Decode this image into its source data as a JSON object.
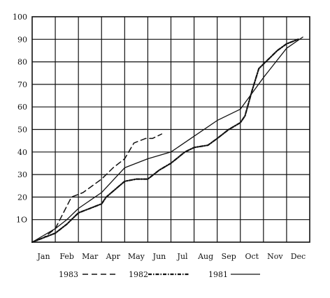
{
  "chart_data": {
    "type": "line",
    "title": "",
    "xlabel": "",
    "ylabel": "",
    "ylim": [
      0,
      100
    ],
    "yticks": [
      10,
      20,
      30,
      40,
      50,
      60,
      70,
      80,
      90,
      100
    ],
    "ytick_labels": [
      "1O",
      "20",
      "30",
      "40",
      "50",
      "60",
      "70",
      "80",
      "90",
      "100"
    ],
    "xticks": [
      "Jan",
      "Feb",
      "Mar",
      "Apr",
      "May",
      "Jun",
      "Jul",
      "Aug",
      "Sep",
      "Oct",
      "Nov",
      "Dec"
    ],
    "grid": true,
    "legend_position": "bottom",
    "series": [
      {
        "name": "1983",
        "style": "dashed",
        "x": [
          0,
          0.5,
          1,
          1.7,
          2.2,
          3,
          3.5,
          4,
          4.4,
          4.9,
          5.2,
          5.6
        ],
        "y": [
          0,
          2,
          6,
          20,
          22,
          28,
          33,
          37,
          44,
          46,
          46,
          48
        ]
      },
      {
        "name": "1982",
        "style": "dash-dot",
        "x": [
          0,
          1,
          1.5,
          2,
          2.5,
          3,
          3.2,
          4,
          4.5,
          5,
          5.5,
          6,
          6.6,
          7,
          7.6,
          8,
          8.5,
          9,
          9.2,
          9.5,
          9.8,
          10,
          10.3,
          10.6,
          11,
          11.5
        ],
        "y": [
          0,
          4,
          8,
          13,
          15,
          17,
          20,
          27,
          28,
          28,
          32,
          35,
          40,
          42,
          43,
          46,
          50,
          53,
          56,
          67,
          77,
          79,
          82,
          85,
          88,
          90
        ]
      },
      {
        "name": "1981",
        "style": "solid",
        "x": [
          0,
          1,
          1.5,
          2,
          3,
          4,
          5,
          6,
          7,
          8,
          9,
          10,
          11,
          11.7
        ],
        "y": [
          0,
          6,
          10,
          15,
          22,
          33,
          37,
          40,
          47,
          54,
          59,
          73,
          86,
          91
        ]
      }
    ]
  },
  "legend": [
    {
      "label": "1983",
      "style": "dashed"
    },
    {
      "label": "1982",
      "style": "dash-dot"
    },
    {
      "label": "1981",
      "style": "solid"
    }
  ],
  "colors": {
    "ink": "#111111",
    "background": "#ffffff"
  }
}
